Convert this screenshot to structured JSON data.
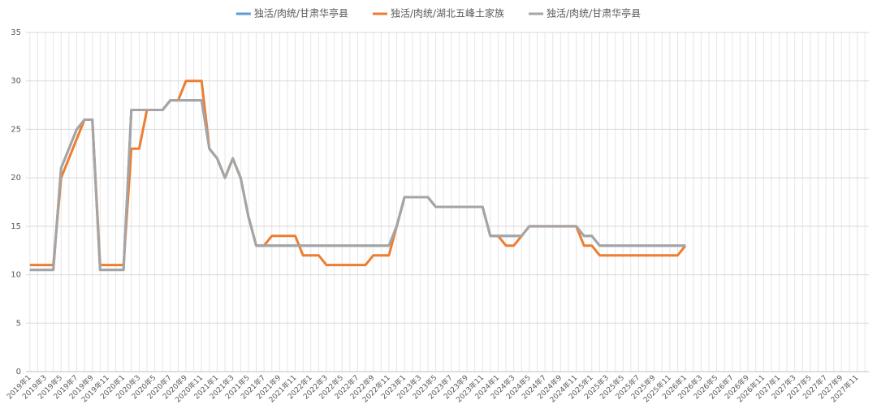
{
  "chart_data": {
    "type": "line",
    "categories": [
      "2019年1",
      null,
      "2019年3",
      null,
      "2019年5",
      null,
      "2019年7",
      null,
      "2019年9",
      null,
      "2019年11",
      null,
      "2020年1",
      null,
      "2020年3",
      null,
      "2020年5",
      null,
      "2020年7",
      null,
      "2020年9",
      null,
      "2020年11",
      null,
      "2021年1",
      null,
      "2021年3",
      null,
      "2021年5",
      null,
      "2021年7",
      null,
      "2021年9",
      null,
      "2021年11",
      null,
      "2022年1",
      null,
      "2022年3",
      null,
      "2022年5",
      null,
      "2022年7",
      null,
      "2022年9",
      null,
      "2022年11",
      null,
      "2023年1",
      null,
      "2023年3",
      null,
      "2023年5",
      null,
      "2023年7",
      null,
      "2023年9",
      null,
      "2023年11",
      null,
      "2024年1",
      null,
      "2024年3",
      null,
      "2024年5",
      null,
      "2024年7",
      null,
      "2024年9",
      null,
      "2024年11",
      null,
      "2025年1",
      null,
      "2025年3",
      null,
      "2025年5",
      null,
      "2025年7",
      null,
      "2025年9",
      null,
      "2025年11",
      null,
      "2026年1",
      null,
      "2026年3",
      null,
      "2026年5",
      null,
      "2026年7",
      null,
      "2026年9",
      null,
      "2026年11",
      null,
      "2027年1",
      null,
      "2027年3",
      null,
      "2027年5",
      null,
      "2027年7",
      null,
      "2027年9",
      null,
      "2027年11",
      null
    ],
    "series": [
      {
        "name": "独活/肉统/甘肃华亭县",
        "color": "#5b9bd5",
        "values": [
          10.5,
          10.5,
          10.5,
          10.5,
          21,
          23,
          25,
          26,
          26,
          10.5,
          10.5,
          10.5,
          10.5,
          27,
          27,
          27,
          27,
          27,
          28,
          28,
          28,
          28,
          28,
          23,
          22,
          20,
          22,
          20,
          16,
          13,
          13,
          13,
          13,
          13,
          13,
          13,
          13,
          13,
          13,
          13,
          13,
          13,
          13,
          13,
          13,
          13,
          13,
          15,
          18,
          18,
          18,
          18,
          17,
          17,
          17,
          17,
          17,
          17,
          17,
          14,
          14,
          14,
          14,
          14,
          15,
          15,
          15,
          15,
          15,
          15,
          15,
          14,
          14,
          13,
          13,
          13,
          13,
          13,
          13,
          13,
          13,
          13,
          13,
          13,
          13,
          null,
          null,
          null,
          null,
          null,
          null,
          null,
          null,
          null,
          null,
          null,
          null,
          null,
          null,
          null,
          null,
          null,
          null,
          null,
          null,
          null,
          null,
          null
        ]
      },
      {
        "name": "独活/肉统/湖北五峰土家族",
        "color": "#ed7d31",
        "values": [
          11,
          11,
          11,
          11,
          20,
          22,
          24,
          26,
          26,
          11,
          11,
          11,
          11,
          23,
          23,
          27,
          27,
          27,
          28,
          28,
          30,
          30,
          30,
          23,
          22,
          20,
          22,
          20,
          16,
          13,
          13,
          14,
          14,
          14,
          14,
          12,
          12,
          12,
          11,
          11,
          11,
          11,
          11,
          11,
          12,
          12,
          12,
          15,
          18,
          18,
          18,
          18,
          17,
          17,
          17,
          17,
          17,
          17,
          17,
          14,
          14,
          13,
          13,
          14,
          15,
          15,
          15,
          15,
          15,
          15,
          15,
          13,
          13,
          12,
          12,
          12,
          12,
          12,
          12,
          12,
          12,
          12,
          12,
          12,
          13,
          null,
          null,
          null,
          null,
          null,
          null,
          null,
          null,
          null,
          null,
          null,
          null,
          null,
          null,
          null,
          null,
          null,
          null,
          null,
          null,
          null,
          null,
          null
        ]
      },
      {
        "name": "独活/肉统/甘肃华亭县",
        "color": "#a5a5a5",
        "values": [
          10.5,
          10.5,
          10.5,
          10.5,
          21,
          23,
          25,
          26,
          26,
          10.5,
          10.5,
          10.5,
          10.5,
          27,
          27,
          27,
          27,
          27,
          28,
          28,
          28,
          28,
          28,
          23,
          22,
          20,
          22,
          20,
          16,
          13,
          13,
          13,
          13,
          13,
          13,
          13,
          13,
          13,
          13,
          13,
          13,
          13,
          13,
          13,
          13,
          13,
          13,
          15,
          18,
          18,
          18,
          18,
          17,
          17,
          17,
          17,
          17,
          17,
          17,
          14,
          14,
          14,
          14,
          14,
          15,
          15,
          15,
          15,
          15,
          15,
          15,
          14,
          14,
          13,
          13,
          13,
          13,
          13,
          13,
          13,
          13,
          13,
          13,
          13,
          13,
          null,
          null,
          null,
          null,
          null,
          null,
          null,
          null,
          null,
          null,
          null,
          null,
          null,
          null,
          null,
          null,
          null,
          null,
          null,
          null,
          null,
          null,
          null
        ]
      }
    ],
    "ylim": [
      0,
      35
    ],
    "yticks": [
      0,
      5,
      10,
      15,
      20,
      25,
      30,
      35
    ],
    "grid": true,
    "legend": "top"
  }
}
